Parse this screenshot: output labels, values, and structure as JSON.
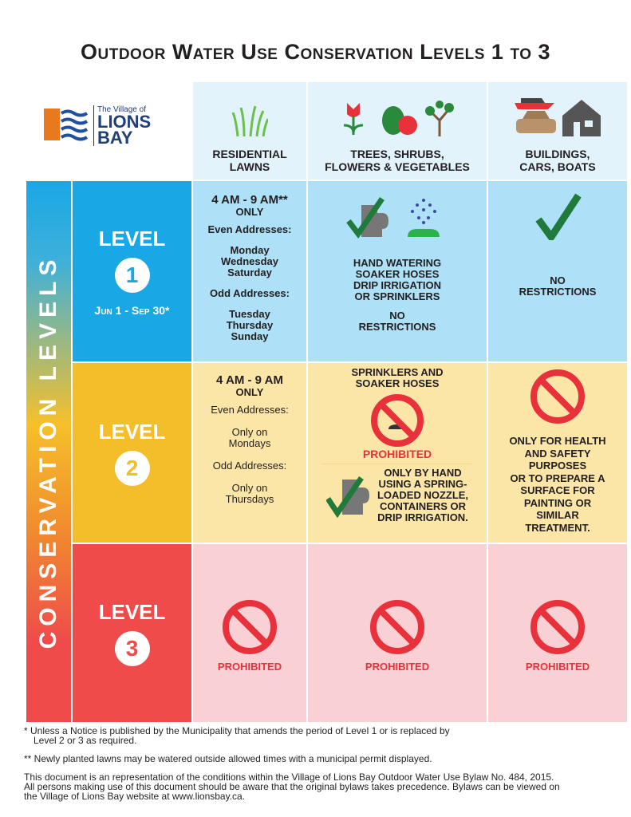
{
  "title": "Outdoor Water Use Conservation Levels 1 to 3",
  "logo": {
    "line1": "The Village of",
    "line2": "LIONS",
    "line3": "BAY"
  },
  "columns": [
    {
      "label1": "RESIDENTIAL",
      "label2": "LAWNS",
      "icon": "grass-icon"
    },
    {
      "label1": "TREES, SHRUBS,",
      "label2": "FLOWERS & VEGETABLES",
      "icon": "plants-icon"
    },
    {
      "label1": "BUILDINGS,",
      "label2": "CARS, BOATS",
      "icon": "house-car-boat-icon"
    }
  ],
  "side_label": "CONSERVATION LEVELS",
  "colors": {
    "level1": "#1aa7e6",
    "level2": "#f4be2b",
    "level3": "#ef4b4b",
    "prohibited": "#e8313a",
    "check": "#1f7a3c"
  },
  "levels": [
    {
      "name": "LEVEL",
      "number": "1",
      "period": "Jun 1 - Sep 30*",
      "lawns": {
        "time": "4 AM - 9 AM**",
        "only": "ONLY",
        "even": "Even Addresses:",
        "even_days": [
          "Monday",
          "Wednesday",
          "Saturday"
        ],
        "odd": "Odd Addresses:",
        "odd_days": [
          "Tuesday",
          "Thursday",
          "Sunday"
        ]
      },
      "plants": {
        "lines": [
          "HAND WATERING",
          "SOAKER HOSES",
          "DRIP IRRIGATION",
          "OR SPRINKLERS"
        ],
        "status1": "NO",
        "status2": "RESTRICTIONS"
      },
      "buildings": {
        "status1": "NO",
        "status2": "RESTRICTIONS"
      }
    },
    {
      "name": "LEVEL",
      "number": "2",
      "lawns": {
        "time": "4 AM - 9 AM",
        "only": "ONLY",
        "even": "Even Addresses:",
        "even_days": [
          "Only on",
          "Mondays"
        ],
        "odd": "Odd Addresses:",
        "odd_days": [
          "Only on",
          "Thursdays"
        ]
      },
      "plants": {
        "top1": "SPRINKLERS AND",
        "top2": "SOAKER HOSES",
        "prohibited": "PROHIBITED",
        "hand": [
          "ONLY BY HAND",
          "USING A SPRING-",
          "LOADED NOZZLE,",
          "CONTAINERS OR",
          "DRIP IRRIGATION."
        ]
      },
      "buildings": {
        "lines": [
          "ONLY FOR HEALTH",
          "AND SAFETY",
          "PURPOSES",
          "OR TO PREPARE A",
          "SURFACE FOR",
          "PAINTING OR",
          "SIMILAR",
          "TREATMENT."
        ]
      }
    },
    {
      "name": "LEVEL",
      "number": "3",
      "lawns": "PROHIBITED",
      "plants": "PROHIBITED",
      "buildings": "PROHIBITED"
    }
  ],
  "footnotes": {
    "f1a": "*  Unless a Notice is published by the Municipality that amends the period of Level 1 or is replaced by",
    "f1b": "Level 2 or 3 as required.",
    "f2": "** Newly planted lawns may be watered outside allowed times with a municipal permit displayed.",
    "f3a": "This document is an representation of the conditions within the Village of Lions Bay Outdoor Water Use Bylaw No. 484, 2015.",
    "f3b": "All persons making use of this document should be aware that the original bylaws takes precedence. Bylaws can be viewed on",
    "f3c": "the Village of Lions Bay website at www.lionsbay.ca."
  }
}
